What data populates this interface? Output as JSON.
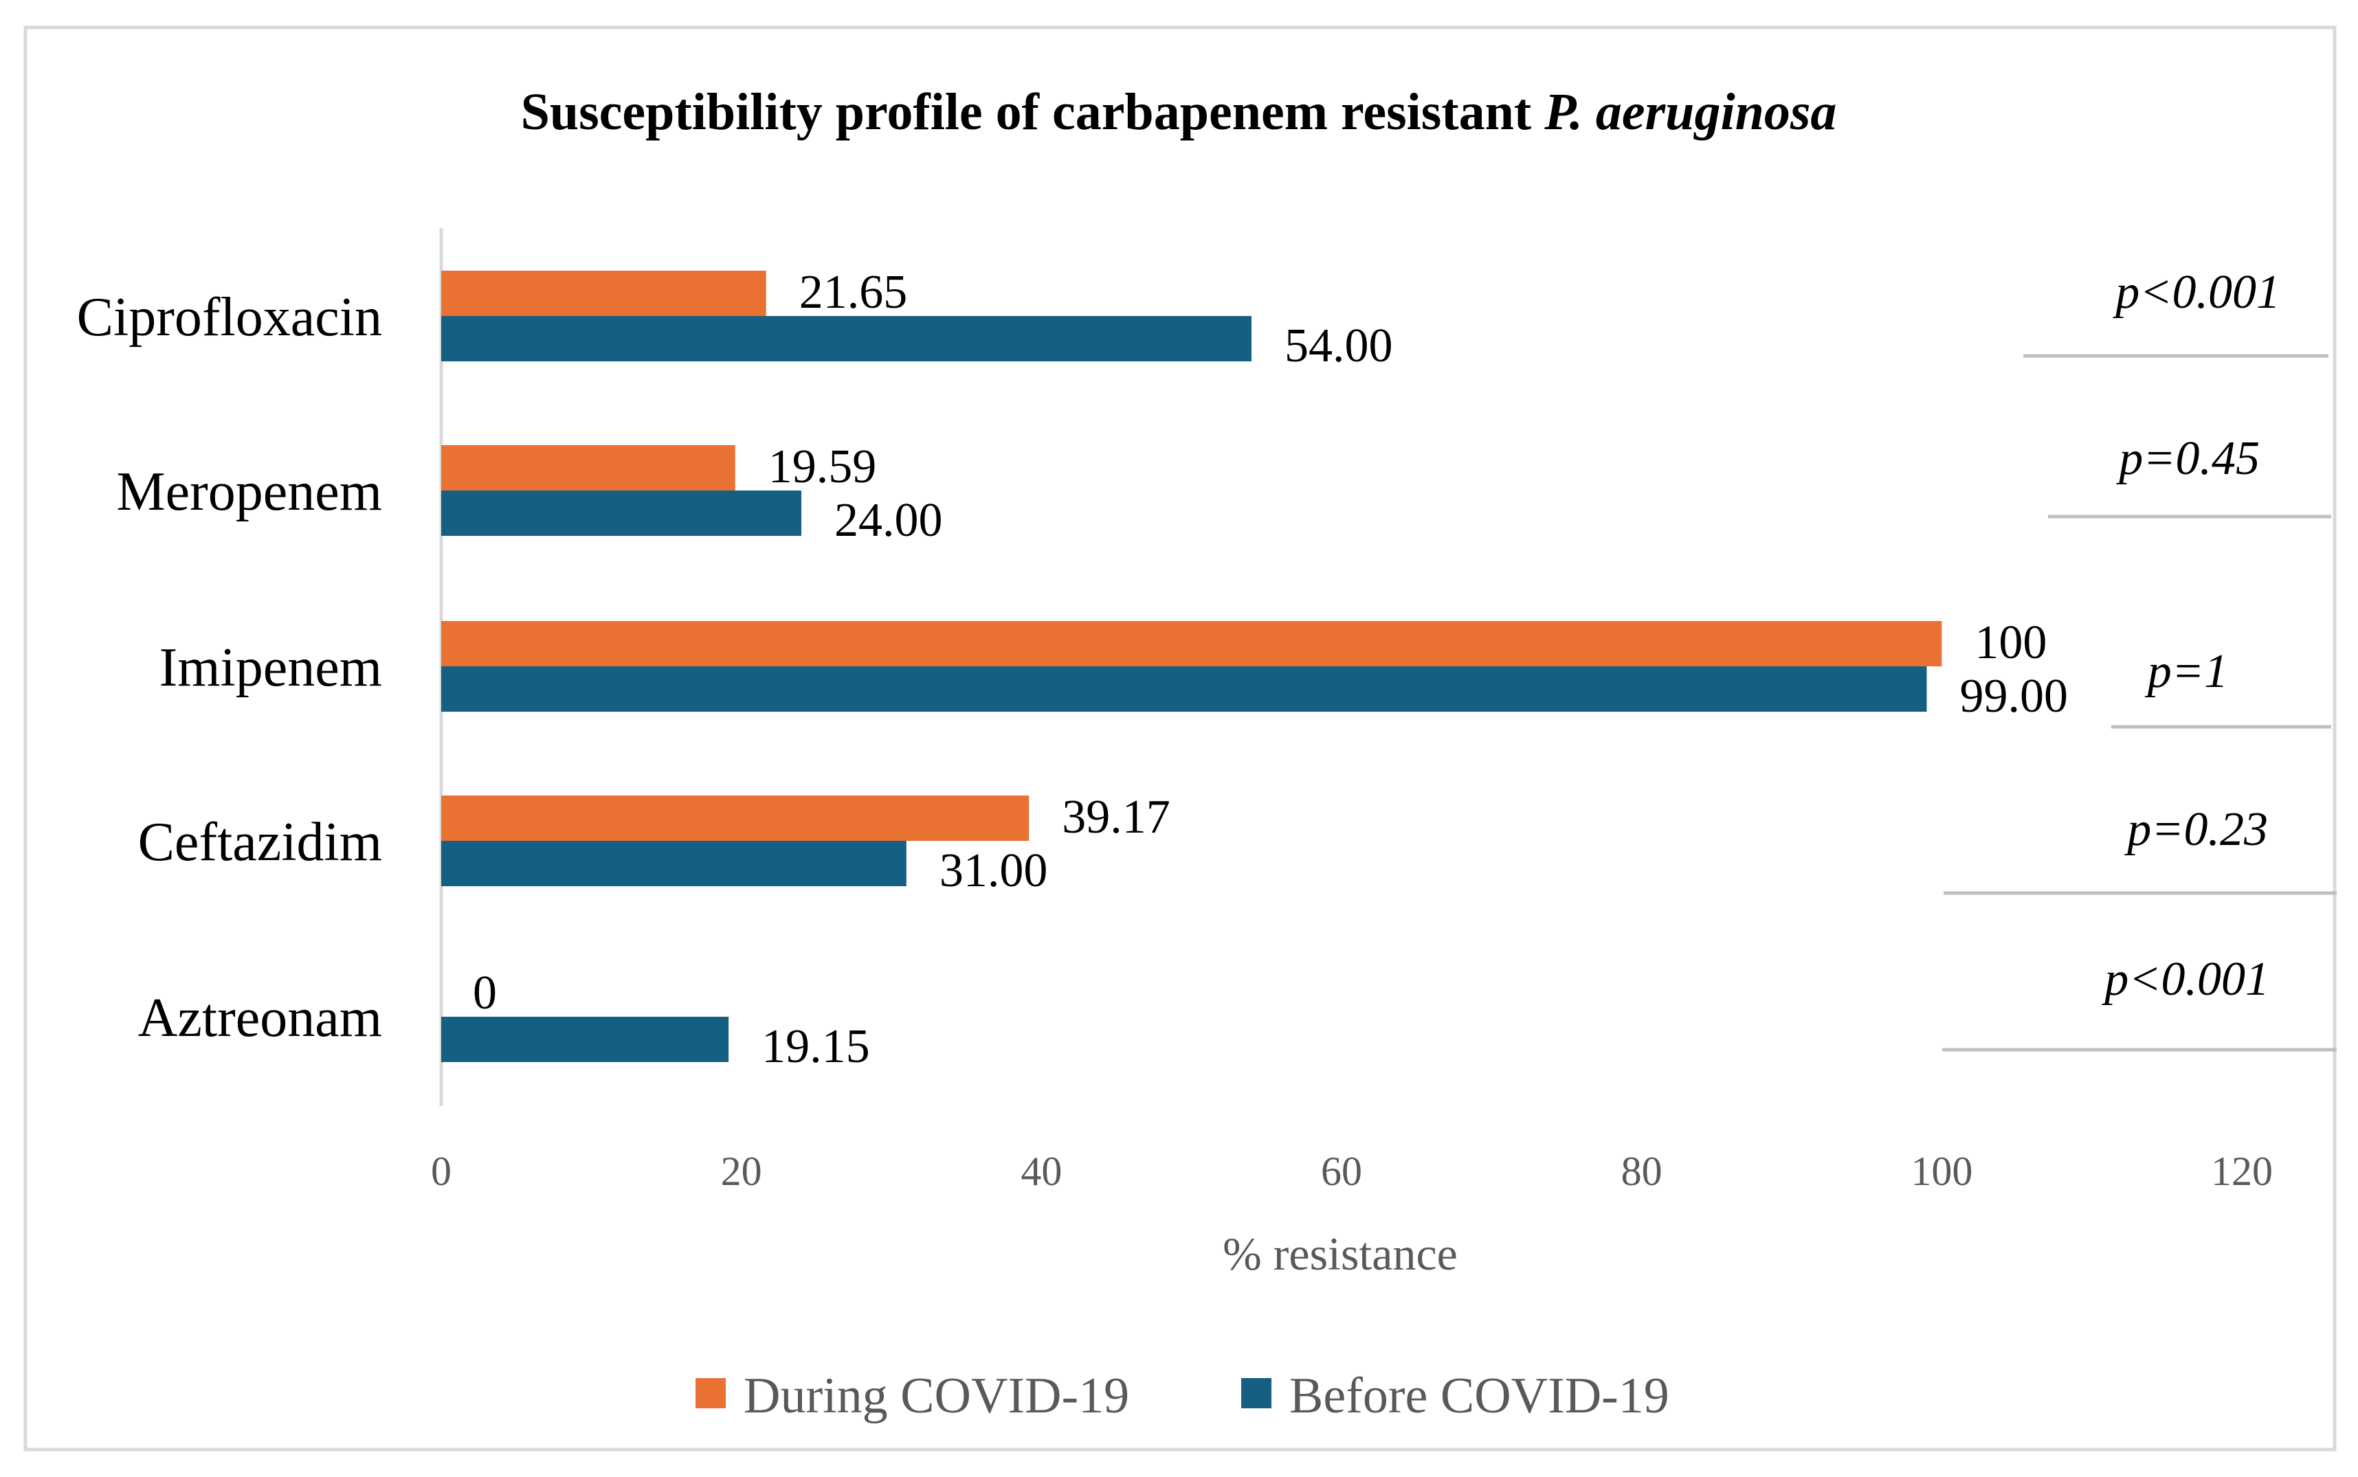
{
  "chart_data": {
    "type": "bar",
    "orientation": "horizontal",
    "title": "Susceptibility profile of carbapenem resistant",
    "title_italic": "P. aeruginosa",
    "categories": [
      "Ciprofloxacin",
      "Meropenem",
      "Imipenem",
      "Ceftazidim",
      "Aztreonam"
    ],
    "series": [
      {
        "name": "During COVID-19",
        "color": "#E97132",
        "values": [
          21.65,
          19.59,
          100,
          39.17,
          0
        ],
        "labels": [
          "21.65",
          "19.59",
          "100",
          "39.17",
          "0"
        ]
      },
      {
        "name": "Before COVID-19",
        "color": "#156082",
        "values": [
          54.0,
          24.0,
          99.0,
          31.0,
          19.15
        ],
        "labels": [
          "54.00",
          "24.00",
          "99.00",
          "31.00",
          "19.15"
        ]
      }
    ],
    "p_values": [
      "p<0.001",
      "p=0.45",
      "p=1",
      "p=0.23",
      "p<0.001"
    ],
    "xlabel": "% resistance",
    "xlim": [
      0,
      120
    ],
    "xticks": [
      0,
      20,
      40,
      60,
      80,
      100,
      120
    ],
    "grid": false,
    "legend": "bottom"
  }
}
